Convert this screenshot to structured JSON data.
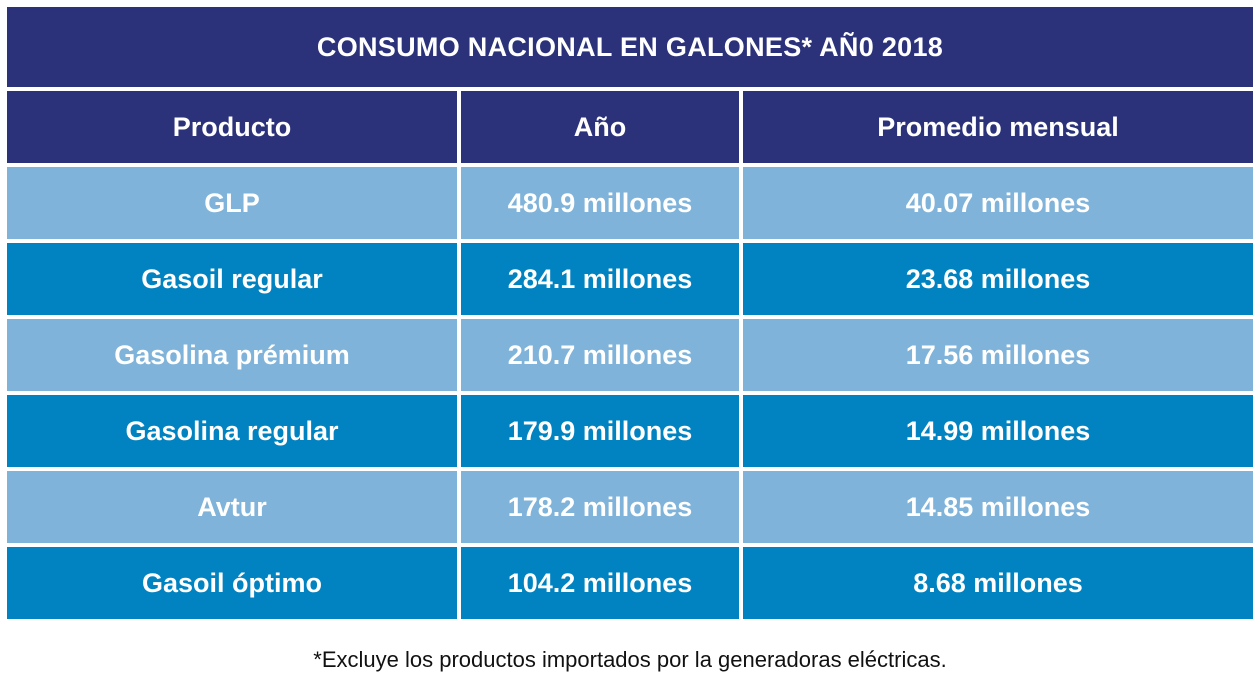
{
  "title": "CONSUMO NACIONAL EN GALONES* AÑ0 2018",
  "headers": [
    "Producto",
    "Año",
    "Promedio mensual"
  ],
  "rows": [
    [
      "GLP",
      "480.9 millones",
      "40.07 millones"
    ],
    [
      "Gasoil regular",
      "284.1 millones",
      "23.68 millones"
    ],
    [
      "Gasolina prémium",
      "210.7 millones",
      "17.56 millones"
    ],
    [
      "Gasolina regular",
      "179.9 millones",
      "14.99 millones"
    ],
    [
      "Avtur",
      "178.2 millones",
      "14.85 millones"
    ],
    [
      "Gasoil óptimo",
      "104.2 millones",
      "8.68 millones"
    ]
  ],
  "footnote": "*Excluye los productos importados por la generadoras eléctricas.",
  "colors": {
    "header": "#2c327a",
    "row_light": "#7fb3d9",
    "row_dark": "#0083c0"
  }
}
